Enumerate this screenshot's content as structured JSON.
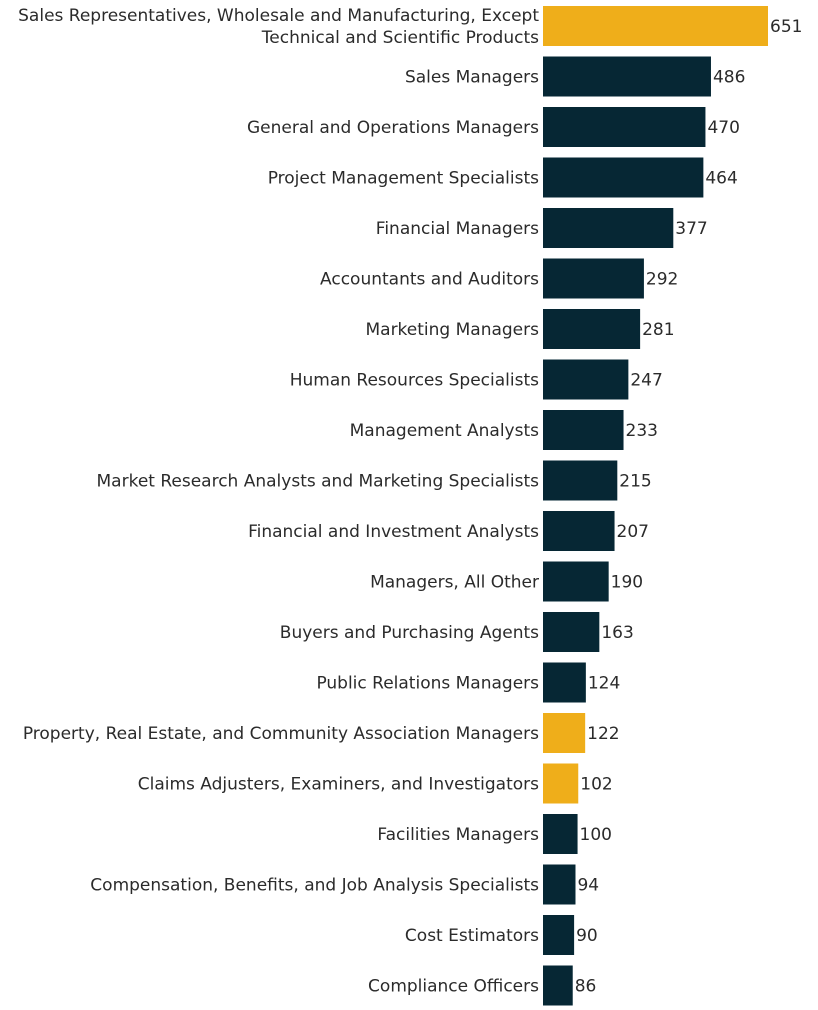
{
  "chart_data": {
    "type": "bar",
    "orientation": "horizontal",
    "title": "",
    "xlabel": "",
    "ylabel": "",
    "xlim": [
      0,
      651
    ],
    "grid": false,
    "legend": "none",
    "colors": {
      "default": "#062734",
      "highlight": "#EFAE1A"
    },
    "categories": [
      [
        "Sales Representatives, Wholesale and Manufacturing, Except",
        "Technical and Scientific Products"
      ],
      [
        "Sales Managers"
      ],
      [
        "General and Operations Managers"
      ],
      [
        "Project Management Specialists"
      ],
      [
        "Financial Managers"
      ],
      [
        "Accountants and Auditors"
      ],
      [
        "Marketing Managers"
      ],
      [
        "Human Resources Specialists"
      ],
      [
        "Management Analysts"
      ],
      [
        "Market Research Analysts and Marketing Specialists"
      ],
      [
        "Financial and Investment Analysts"
      ],
      [
        "Managers, All Other"
      ],
      [
        "Buyers and Purchasing Agents"
      ],
      [
        "Public Relations Managers"
      ],
      [
        "Property, Real Estate, and Community Association Managers"
      ],
      [
        "Claims Adjusters, Examiners, and Investigators"
      ],
      [
        "Facilities Managers"
      ],
      [
        "Compensation, Benefits, and Job Analysis Specialists"
      ],
      [
        "Cost Estimators"
      ],
      [
        "Compliance Officers"
      ]
    ],
    "values": [
      651,
      486,
      470,
      464,
      377,
      292,
      281,
      247,
      233,
      215,
      207,
      190,
      163,
      124,
      122,
      102,
      100,
      94,
      90,
      86
    ],
    "highlighted": [
      true,
      false,
      false,
      false,
      false,
      false,
      false,
      false,
      false,
      false,
      false,
      false,
      false,
      false,
      true,
      true,
      false,
      false,
      false,
      false
    ]
  }
}
